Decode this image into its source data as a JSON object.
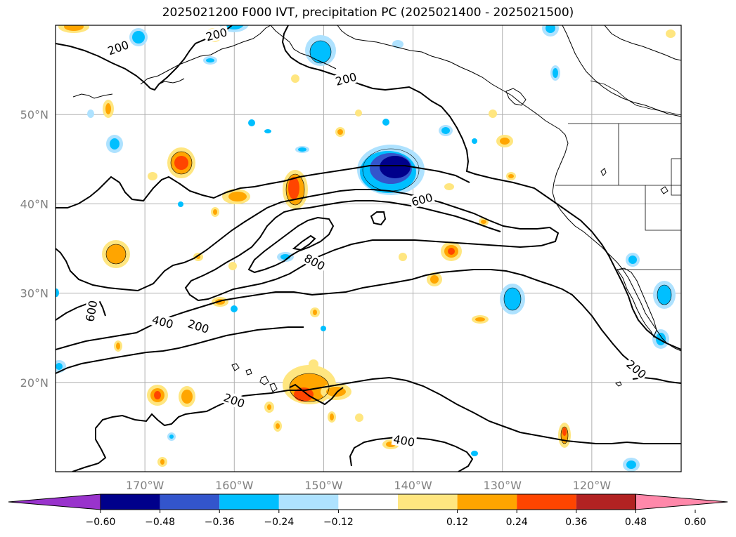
{
  "title": "2025021200 F000 IVT, precipitation PC (2025021400 - 2025021500)",
  "map": {
    "lon_range": [
      -180,
      -110
    ],
    "lat_range": [
      10,
      60
    ],
    "lat_labels": [
      "50°N",
      "40°N",
      "30°N",
      "20°N"
    ],
    "lon_labels": [
      "170°W",
      "160°W",
      "150°W",
      "140°W",
      "130°W",
      "120°W"
    ],
    "label_color": "#808080",
    "grid_color": "#b0b0b0"
  },
  "colorbar": {
    "colors": [
      "#9933cc",
      "#00008b",
      "#3355cc",
      "#00bfff",
      "#aee2ff",
      "#ffffff",
      "#ffe680",
      "#ffa500",
      "#ff4500",
      "#b22222",
      "#ff88aa"
    ],
    "tick_labels": [
      "−0.60",
      "−0.48",
      "−0.36",
      "−0.24",
      "−0.12",
      "0.12",
      "0.24",
      "0.36",
      "0.48",
      "0.60"
    ]
  },
  "contour_labels": [
    {
      "text": "200",
      "lon": -173,
      "lat": 57.5,
      "angle": 20
    },
    {
      "text": "200",
      "lon": -162,
      "lat": 59,
      "angle": 15
    },
    {
      "text": "200",
      "lon": -147.5,
      "lat": 54,
      "angle": 15
    },
    {
      "text": "600",
      "lon": -139,
      "lat": 40.5,
      "angle": 15
    },
    {
      "text": "800",
      "lon": -151,
      "lat": 33.5,
      "angle": -28
    },
    {
      "text": "600",
      "lon": -176,
      "lat": 28,
      "angle": 80
    },
    {
      "text": "400",
      "lon": -168,
      "lat": 26.8,
      "angle": -15
    },
    {
      "text": "200",
      "lon": -164,
      "lat": 26.3,
      "angle": -18
    },
    {
      "text": "200",
      "lon": -160,
      "lat": 18,
      "angle": -20
    },
    {
      "text": "400",
      "lon": -141,
      "lat": 13.5,
      "angle": -10
    },
    {
      "text": "200",
      "lon": -115,
      "lat": 21.5,
      "angle": -40
    }
  ]
}
